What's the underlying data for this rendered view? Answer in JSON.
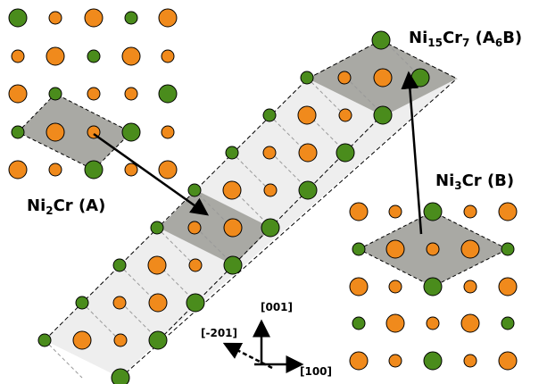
{
  "labels": [
    {
      "parts": [
        "Ni",
        "2",
        "Cr (A)"
      ]
    },
    {
      "parts": [
        "Ni",
        "15",
        "Cr",
        "7",
        " (A",
        "6",
        "B)"
      ]
    },
    {
      "parts": [
        "Ni",
        "3",
        "Cr (B)"
      ]
    }
  ],
  "axes": [
    "[001]",
    "[-201]",
    "[100]"
  ]
}
